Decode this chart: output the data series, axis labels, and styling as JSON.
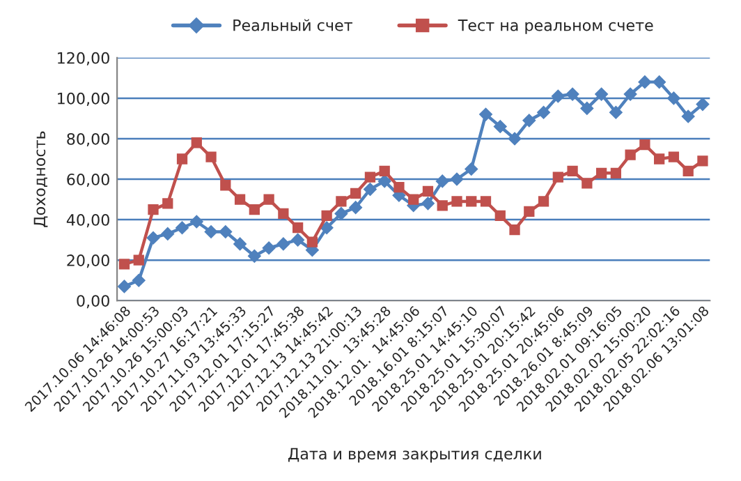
{
  "chart_data": {
    "type": "line",
    "xlabel": "Дата и время закрытия сделки",
    "ylabel": "Доходность",
    "categories": [
      "2017.10.06 14:46:08",
      null,
      "2017.10.26 14:00:53",
      null,
      "2017.10.26 15:00:03",
      null,
      "2017.10.27 16:17:21",
      null,
      "2017.11.03 13:45:33",
      null,
      "2017.12.01 17:15:27",
      null,
      "2017.12.01 17:45:38",
      null,
      "2017.12.13 14:45:42",
      null,
      "2017.12.13 21:00:13",
      null,
      "2018.11.01.  13:45:28",
      null,
      "2018.12.01.  14:45:06",
      null,
      "2018.16.01 8:15:07",
      null,
      "2018.25.01 14:45:10",
      null,
      "2018.25.01 15:30:07",
      null,
      "2018.25.01 20:15:42",
      null,
      "2018.25.01 20:45:06",
      null,
      "2018.26.01 8:45:09",
      null,
      "2018.02.01 09:16:05",
      null,
      "2018.02.02 15:00:20",
      null,
      "2018.02.05 22:02:16",
      null,
      "2018.02.06 13:01:08"
    ],
    "series": [
      {
        "name": "Реальный счет",
        "color": "#4f81bd",
        "marker": "diamond",
        "values": [
          7,
          10,
          31,
          33,
          36,
          39,
          34,
          34,
          28,
          22,
          26,
          28,
          30,
          25,
          36,
          43,
          46,
          55,
          59,
          52,
          47,
          48,
          59,
          60,
          65,
          92,
          86,
          80,
          89,
          93,
          101,
          102,
          95,
          102,
          93,
          102,
          108,
          108,
          100,
          91,
          97
        ]
      },
      {
        "name": "Тест на реальном счете",
        "color": "#c0504d",
        "marker": "square",
        "values": [
          18,
          20,
          45,
          48,
          70,
          78,
          71,
          57,
          50,
          45,
          50,
          43,
          36,
          29,
          42,
          49,
          53,
          61,
          64,
          56,
          50,
          54,
          47,
          49,
          49,
          49,
          42,
          35,
          44,
          49,
          61,
          64,
          58,
          63,
          63,
          72,
          77,
          70,
          71,
          64,
          69
        ]
      }
    ],
    "ylim": [
      0,
      120
    ],
    "yticks": [
      {
        "value": 0,
        "label": "0,00"
      },
      {
        "value": 20,
        "label": "20,00"
      },
      {
        "value": 40,
        "label": "40,00"
      },
      {
        "value": 60,
        "label": "60,00"
      },
      {
        "value": 80,
        "label": "80,00"
      },
      {
        "value": 100,
        "label": "100,00"
      },
      {
        "value": 120,
        "label": "120,00"
      }
    ],
    "grid": "y",
    "legend": "top",
    "line_style": "solid"
  }
}
